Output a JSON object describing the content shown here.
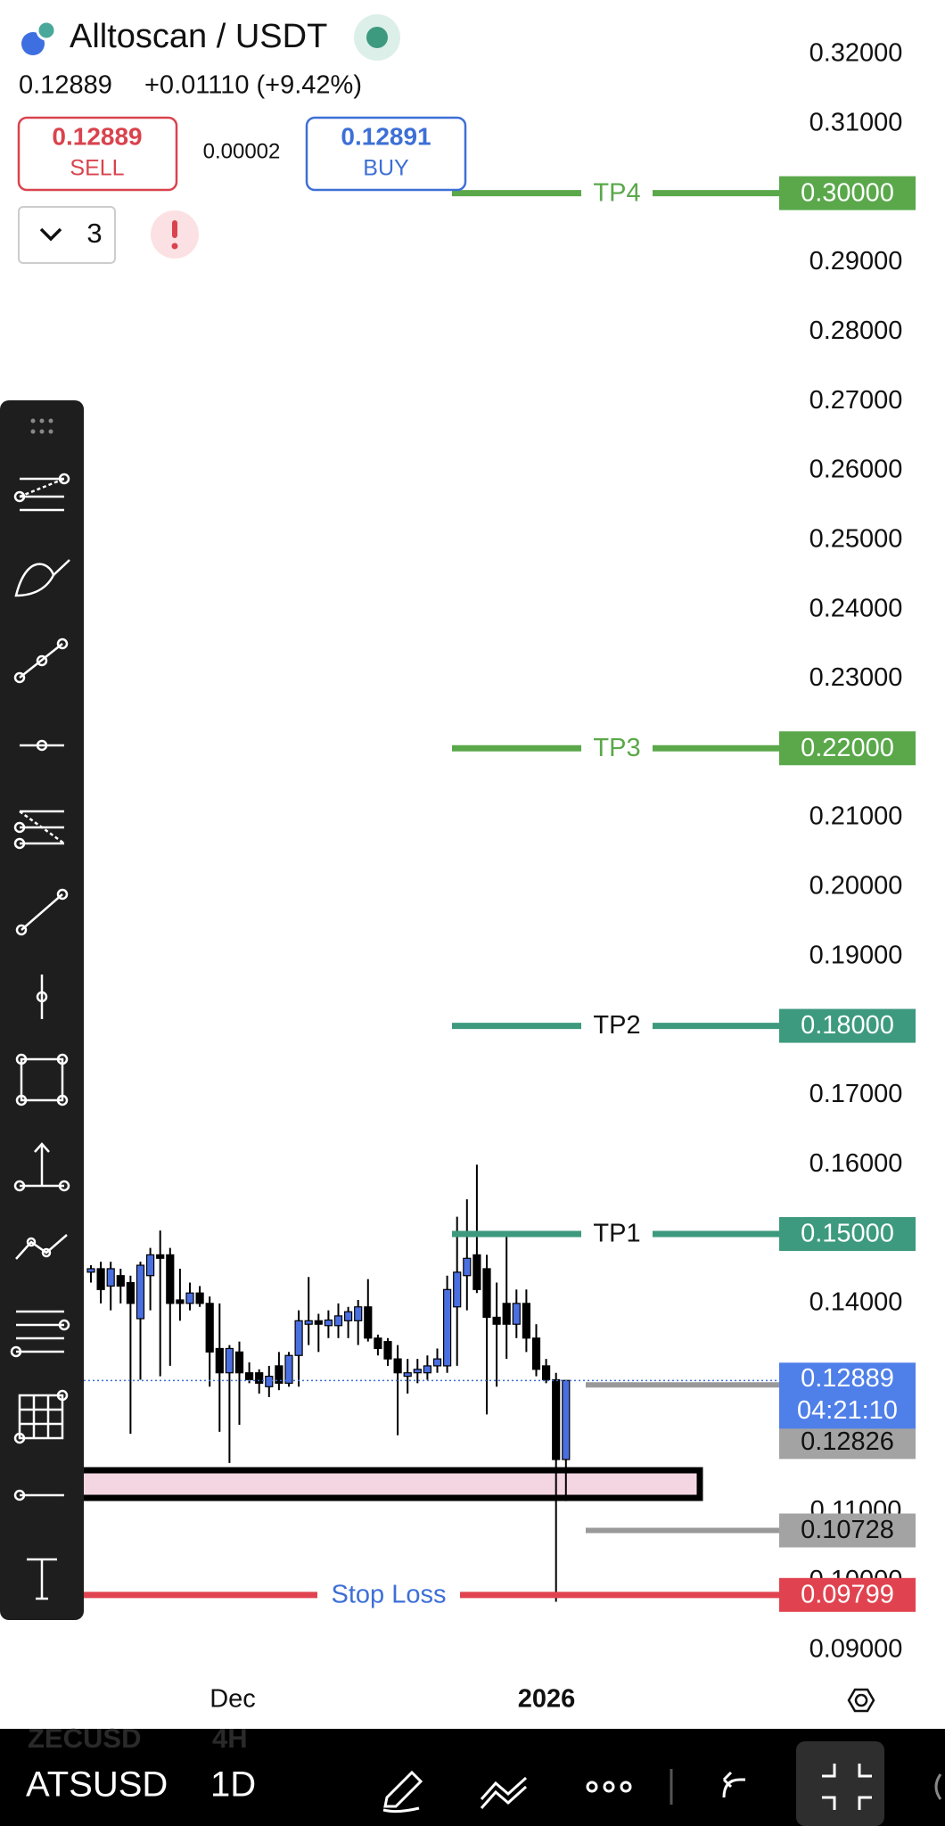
{
  "header": {
    "symbol": "Alltoscan / USDT",
    "price": "0.12889",
    "change": "+0.01110 (+9.42%)"
  },
  "order": {
    "sell_price": "0.12889",
    "sell": "SELL",
    "spread": "0.00002",
    "buy_price": "0.12891",
    "buy": "BUY",
    "count": "3"
  },
  "chart": {
    "price_ticks": [
      {
        "value": 0.32,
        "label": "0.32000"
      },
      {
        "value": 0.31,
        "label": "0.31000"
      },
      {
        "value": 0.29,
        "label": "0.29000"
      },
      {
        "value": 0.28,
        "label": "0.28000"
      },
      {
        "value": 0.27,
        "label": "0.27000"
      },
      {
        "value": 0.26,
        "label": "0.26000"
      },
      {
        "value": 0.25,
        "label": "0.25000"
      },
      {
        "value": 0.24,
        "label": "0.24000"
      },
      {
        "value": 0.23,
        "label": "0.23000"
      },
      {
        "value": 0.21,
        "label": "0.21000"
      },
      {
        "value": 0.2,
        "label": "0.20000"
      },
      {
        "value": 0.19,
        "label": "0.19000"
      },
      {
        "value": 0.17,
        "label": "0.17000"
      },
      {
        "value": 0.16,
        "label": "0.16000"
      },
      {
        "value": 0.14,
        "label": "0.14000"
      },
      {
        "value": 0.11,
        "label": "0.11000"
      },
      {
        "value": 0.1,
        "label": "0.10000"
      },
      {
        "value": 0.09,
        "label": "0.09000"
      }
    ],
    "time_labels": [
      "Dec",
      "2026"
    ],
    "levels": [
      {
        "name": "TP4",
        "value": 0.3,
        "label": "0.30000",
        "color": "#5aa84a",
        "text_color": "#5aa84a"
      },
      {
        "name": "TP3",
        "value": 0.22,
        "label": "0.22000",
        "color": "#5aa84a",
        "text_color": "#5aa84a"
      },
      {
        "name": "TP2",
        "value": 0.18,
        "label": "0.18000",
        "color": "#3d9a7e",
        "text_color": "#111111"
      },
      {
        "name": "TP1",
        "value": 0.15,
        "label": "0.15000",
        "color": "#3d9a7e",
        "text_color": "#111111"
      },
      {
        "name": "Stop Loss",
        "value": 0.09799,
        "label": "0.09799",
        "color": "#e0434f",
        "text_color": "#3d6fd6"
      }
    ],
    "last_price": {
      "value": 0.12889,
      "label": "0.12889",
      "countdown": "04:21:10"
    },
    "markers": [
      {
        "value": 0.12826,
        "label": "0.12826"
      },
      {
        "value": 0.10728,
        "label": "0.10728"
      }
    ],
    "candles": [
      {
        "open": 0.1445,
        "high": 0.1455,
        "low": 0.143,
        "close": 0.145
      },
      {
        "open": 0.145,
        "high": 0.146,
        "low": 0.14,
        "close": 0.142
      },
      {
        "open": 0.1425,
        "high": 0.146,
        "low": 0.139,
        "close": 0.145
      },
      {
        "open": 0.144,
        "high": 0.145,
        "low": 0.14,
        "close": 0.1425
      },
      {
        "open": 0.143,
        "high": 0.144,
        "low": 0.1212,
        "close": 0.14
      },
      {
        "open": 0.1378,
        "high": 0.146,
        "low": 0.129,
        "close": 0.1455
      },
      {
        "open": 0.144,
        "high": 0.148,
        "low": 0.139,
        "close": 0.147
      },
      {
        "open": 0.147,
        "high": 0.1505,
        "low": 0.1295,
        "close": 0.1465
      },
      {
        "open": 0.147,
        "high": 0.148,
        "low": 0.131,
        "close": 0.14
      },
      {
        "open": 0.1405,
        "high": 0.145,
        "low": 0.1375,
        "close": 0.14
      },
      {
        "open": 0.14,
        "high": 0.143,
        "low": 0.139,
        "close": 0.1415
      },
      {
        "open": 0.1415,
        "high": 0.1425,
        "low": 0.1395,
        "close": 0.14
      },
      {
        "open": 0.14,
        "high": 0.141,
        "low": 0.128,
        "close": 0.133
      },
      {
        "open": 0.1335,
        "high": 0.14,
        "low": 0.1215,
        "close": 0.13
      },
      {
        "open": 0.13,
        "high": 0.134,
        "low": 0.117,
        "close": 0.1335
      },
      {
        "open": 0.133,
        "high": 0.1345,
        "low": 0.1225,
        "close": 0.13
      },
      {
        "open": 0.13,
        "high": 0.1315,
        "low": 0.1285,
        "close": 0.129
      },
      {
        "open": 0.13,
        "high": 0.1305,
        "low": 0.127,
        "close": 0.1285
      },
      {
        "open": 0.128,
        "high": 0.131,
        "low": 0.1265,
        "close": 0.1295
      },
      {
        "open": 0.131,
        "high": 0.133,
        "low": 0.1275,
        "close": 0.1285
      },
      {
        "open": 0.1285,
        "high": 0.133,
        "low": 0.128,
        "close": 0.1325
      },
      {
        "open": 0.1325,
        "high": 0.139,
        "low": 0.128,
        "close": 0.1375
      },
      {
        "open": 0.137,
        "high": 0.1438,
        "low": 0.134,
        "close": 0.1375
      },
      {
        "open": 0.1375,
        "high": 0.1385,
        "low": 0.133,
        "close": 0.137
      },
      {
        "open": 0.1368,
        "high": 0.139,
        "low": 0.135,
        "close": 0.1376
      },
      {
        "open": 0.1368,
        "high": 0.14,
        "low": 0.135,
        "close": 0.1382
      },
      {
        "open": 0.1375,
        "high": 0.1395,
        "low": 0.135,
        "close": 0.1388
      },
      {
        "open": 0.1375,
        "high": 0.1405,
        "low": 0.134,
        "close": 0.1395
      },
      {
        "open": 0.1395,
        "high": 0.1435,
        "low": 0.1345,
        "close": 0.135
      },
      {
        "open": 0.135,
        "high": 0.1355,
        "low": 0.1325,
        "close": 0.1335
      },
      {
        "open": 0.1345,
        "high": 0.135,
        "low": 0.131,
        "close": 0.132
      },
      {
        "open": 0.132,
        "high": 0.134,
        "low": 0.121,
        "close": 0.13
      },
      {
        "open": 0.1295,
        "high": 0.132,
        "low": 0.127,
        "close": 0.13
      },
      {
        "open": 0.13,
        "high": 0.132,
        "low": 0.1285,
        "close": 0.1305
      },
      {
        "open": 0.13,
        "high": 0.1325,
        "low": 0.129,
        "close": 0.131
      },
      {
        "open": 0.131,
        "high": 0.1335,
        "low": 0.13,
        "close": 0.132
      },
      {
        "open": 0.131,
        "high": 0.144,
        "low": 0.13,
        "close": 0.142
      },
      {
        "open": 0.1395,
        "high": 0.1525,
        "low": 0.131,
        "close": 0.1445
      },
      {
        "open": 0.144,
        "high": 0.155,
        "low": 0.139,
        "close": 0.1465
      },
      {
        "open": 0.147,
        "high": 0.16,
        "low": 0.1415,
        "close": 0.142
      },
      {
        "open": 0.145,
        "high": 0.147,
        "low": 0.124,
        "close": 0.138
      },
      {
        "open": 0.138,
        "high": 0.143,
        "low": 0.128,
        "close": 0.137
      },
      {
        "open": 0.14,
        "high": 0.15,
        "low": 0.132,
        "close": 0.137
      },
      {
        "open": 0.137,
        "high": 0.142,
        "low": 0.135,
        "close": 0.14
      },
      {
        "open": 0.14,
        "high": 0.142,
        "low": 0.133,
        "close": 0.135
      },
      {
        "open": 0.135,
        "high": 0.137,
        "low": 0.1295,
        "close": 0.1305
      },
      {
        "open": 0.131,
        "high": 0.132,
        "low": 0.1285,
        "close": 0.129
      },
      {
        "open": 0.129,
        "high": 0.13,
        "low": 0.097,
        "close": 0.1175
      },
      {
        "open": 0.1175,
        "high": 0.129,
        "low": 0.1115,
        "close": 0.1289
      }
    ]
  },
  "bottom": {
    "faded_symbol": "ZECUSD",
    "faded_interval": "4H",
    "symbol": "ATSUSD",
    "interval": "1D"
  }
}
